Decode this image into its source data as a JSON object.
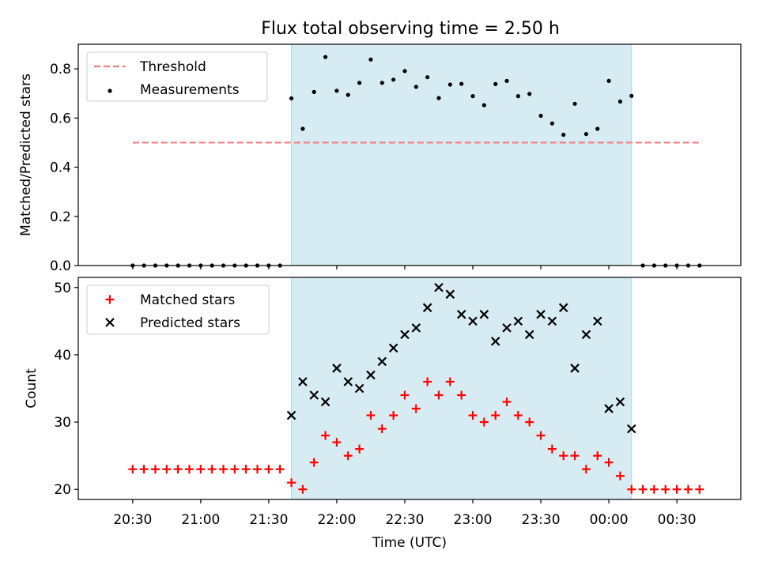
{
  "title": "Flux total observing time = 2.50 h",
  "colors": {
    "threshold": "#f08080",
    "measurement": "#000000",
    "matched": "#ff0000",
    "predicted": "#000000",
    "span": "#add8e6"
  },
  "chart_data": [
    {
      "type": "scatter",
      "ylabel": "Matched/Predicted stars",
      "ylim": [
        0,
        0.9
      ],
      "yticks": [
        "0.0",
        "0.2",
        "0.4",
        "0.6",
        "0.8"
      ],
      "xlim_hours": [
        20.1,
        24.97
      ],
      "highlight_span": [
        "21:40",
        "00:10"
      ],
      "legend": {
        "position": "top-left",
        "entries": [
          "Threshold",
          "Measurements"
        ]
      },
      "threshold": {
        "name": "Threshold",
        "value": 0.5,
        "x_range": [
          "20:30",
          "00:40"
        ],
        "style": "dashed"
      },
      "series": [
        {
          "name": "Measurements",
          "x": [
            "20:30",
            "20:35",
            "20:40",
            "20:45",
            "20:50",
            "20:55",
            "21:00",
            "21:05",
            "21:10",
            "21:15",
            "21:20",
            "21:25",
            "21:30",
            "21:35",
            "21:40",
            "21:45",
            "21:50",
            "21:55",
            "22:00",
            "22:05",
            "22:10",
            "22:15",
            "22:20",
            "22:25",
            "22:30",
            "22:35",
            "22:40",
            "22:45",
            "22:50",
            "22:55",
            "23:00",
            "23:05",
            "23:10",
            "23:15",
            "23:20",
            "23:25",
            "23:30",
            "23:35",
            "23:40",
            "23:45",
            "23:50",
            "23:55",
            "00:00",
            "00:05",
            "00:10",
            "00:15",
            "00:20",
            "00:25",
            "00:30",
            "00:35",
            "00:40"
          ],
          "y": [
            0,
            0,
            0,
            0,
            0,
            0,
            0,
            0,
            0,
            0,
            0,
            0,
            0,
            0,
            0.68,
            0.556,
            0.706,
            0.848,
            0.711,
            0.694,
            0.743,
            0.838,
            0.743,
            0.756,
            0.791,
            0.727,
            0.766,
            0.681,
            0.736,
            0.739,
            0.689,
            0.652,
            0.738,
            0.751,
            0.689,
            0.698,
            0.609,
            0.578,
            0.532,
            0.658,
            0.535,
            0.556,
            0.751,
            0.667,
            0.69,
            0,
            0,
            0,
            0,
            0,
            0
          ]
        }
      ]
    },
    {
      "type": "scatter",
      "xlabel": "Time (UTC)",
      "ylabel": "Count",
      "ylim": [
        18.5,
        51.5
      ],
      "yticks": [
        "20",
        "30",
        "40",
        "50"
      ],
      "xticks": [
        "20:30",
        "21:00",
        "21:30",
        "22:00",
        "22:30",
        "23:00",
        "23:30",
        "00:00",
        "00:30"
      ],
      "highlight_span": [
        "21:40",
        "00:10"
      ],
      "legend": {
        "position": "top-left",
        "entries": [
          "Matched stars",
          "Predicted stars"
        ]
      },
      "series": [
        {
          "name": "Matched stars",
          "marker": "+",
          "x": [
            "20:30",
            "20:35",
            "20:40",
            "20:45",
            "20:50",
            "20:55",
            "21:00",
            "21:05",
            "21:10",
            "21:15",
            "21:20",
            "21:25",
            "21:30",
            "21:35",
            "21:40",
            "21:45",
            "21:50",
            "21:55",
            "22:00",
            "22:05",
            "22:10",
            "22:15",
            "22:20",
            "22:25",
            "22:30",
            "22:35",
            "22:40",
            "22:45",
            "22:50",
            "22:55",
            "23:00",
            "23:05",
            "23:10",
            "23:15",
            "23:20",
            "23:25",
            "23:30",
            "23:35",
            "23:40",
            "23:45",
            "23:50",
            "23:55",
            "00:00",
            "00:05",
            "00:10",
            "00:15",
            "00:20",
            "00:25",
            "00:30",
            "00:35",
            "00:40"
          ],
          "y": [
            23,
            23,
            23,
            23,
            23,
            23,
            23,
            23,
            23,
            23,
            23,
            23,
            23,
            23,
            21,
            20,
            24,
            28,
            27,
            25,
            26,
            31,
            29,
            31,
            34,
            32,
            36,
            34,
            36,
            34,
            31,
            30,
            31,
            33,
            31,
            30,
            28,
            26,
            25,
            25,
            23,
            25,
            24,
            22,
            20,
            20,
            20,
            20,
            20,
            20,
            20
          ]
        },
        {
          "name": "Predicted stars",
          "marker": "x",
          "x": [
            "21:40",
            "21:45",
            "21:50",
            "21:55",
            "22:00",
            "22:05",
            "22:10",
            "22:15",
            "22:20",
            "22:25",
            "22:30",
            "22:35",
            "22:40",
            "22:45",
            "22:50",
            "22:55",
            "23:00",
            "23:05",
            "23:10",
            "23:15",
            "23:20",
            "23:25",
            "23:30",
            "23:35",
            "23:40",
            "23:45",
            "23:50",
            "23:55",
            "00:00",
            "00:05",
            "00:10"
          ],
          "y": [
            31,
            36,
            34,
            33,
            38,
            36,
            35,
            37,
            39,
            41,
            43,
            44,
            47,
            50,
            49,
            46,
            45,
            46,
            42,
            44,
            45,
            43,
            46,
            45,
            47,
            38,
            43,
            45,
            32,
            33,
            29
          ]
        }
      ]
    }
  ]
}
